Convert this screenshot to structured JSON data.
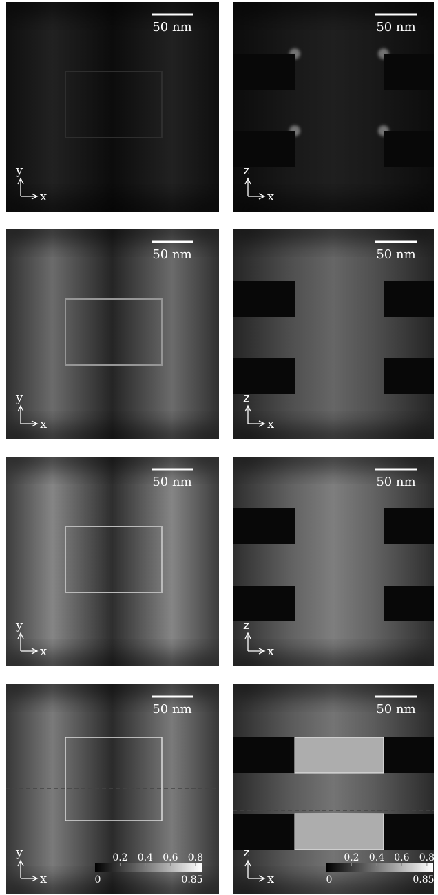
{
  "panels": [
    {
      "scale_bar": "50 nm",
      "axis_v": "y",
      "axis_h": "x"
    },
    {
      "scale_bar": "50 nm",
      "axis_v": "z",
      "axis_h": "x"
    },
    {
      "scale_bar": "50 nm",
      "axis_v": "y",
      "axis_h": "x"
    },
    {
      "scale_bar": "50 nm",
      "axis_v": "z",
      "axis_h": "x"
    },
    {
      "scale_bar": "50 nm",
      "axis_v": "y",
      "axis_h": "x"
    },
    {
      "scale_bar": "50 nm",
      "axis_v": "z",
      "axis_h": "x"
    },
    {
      "scale_bar": "50 nm",
      "axis_v": "y",
      "axis_h": "x"
    },
    {
      "scale_bar": "50 nm",
      "axis_v": "z",
      "axis_h": "x"
    }
  ],
  "colorbar": {
    "min": 0,
    "max": 0.85,
    "ticks": [
      0.2,
      0.4,
      0.6,
      0.8
    ]
  }
}
